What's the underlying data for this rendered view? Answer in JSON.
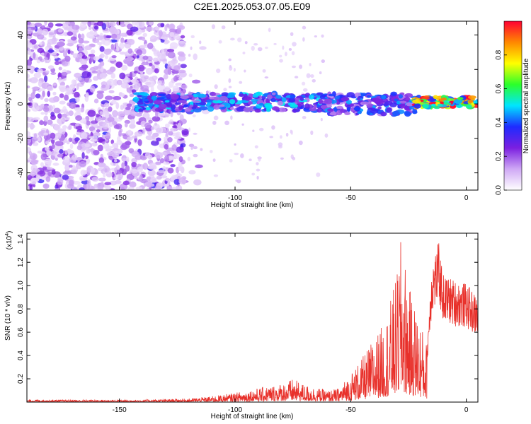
{
  "title": "C2E1.2025.053.07.05.E09",
  "chart_data": [
    {
      "type": "heatmap",
      "title": "C2E1.2025.053.07.05.E09",
      "xlabel": "Height of straight line (km)",
      "ylabel": "Frequency (Hz)",
      "xlim": [
        -190,
        5
      ],
      "ylim": [
        -50,
        48
      ],
      "xticks": [
        "-150",
        "-100",
        "-50",
        "0"
      ],
      "xtick_values": [
        -150,
        -100,
        -50,
        0
      ],
      "yticks": [
        "-40",
        "-20",
        "0",
        "20",
        "40"
      ],
      "ytick_values": [
        -40,
        -20,
        0,
        20,
        40
      ],
      "colorbar": {
        "label": "Normalized spectral amplitude",
        "range": [
          0,
          1
        ],
        "ticks": [
          "0.0",
          "0.2",
          "0.4",
          "0.6",
          "0.8"
        ],
        "tick_values": [
          0.0,
          0.2,
          0.4,
          0.6,
          0.8
        ],
        "colors": [
          "#ffffff",
          "#cfa8f5",
          "#7b1fe0",
          "#1e2bff",
          "#00e5ff",
          "#2bff2b",
          "#ffff00",
          "#ff8800",
          "#ff0033"
        ]
      },
      "features": [
        {
          "x_range": [
            -190,
            -122
          ],
          "y_range": [
            -50,
            48
          ],
          "amplitude": 0.15
        },
        {
          "x_range": [
            -143,
            -60
          ],
          "y_center": 1,
          "y_halfwidth": 5,
          "amplitude": 0.45
        },
        {
          "x_range": [
            -60,
            -22
          ],
          "y_center": 0,
          "y_halfwidth": 6,
          "amplitude": 0.4
        },
        {
          "x_range": [
            -22,
            5
          ],
          "y_center": 1,
          "y_halfwidth": 3,
          "amplitude": 0.9
        }
      ]
    },
    {
      "type": "line",
      "xlabel": "Height of straight line (km)",
      "ylabel": "SNR (10 * v/v)",
      "y_multiplier": "(x10",
      "y_multiplier_exp": "4",
      "y_multiplier_close": ")",
      "xlim": [
        -190,
        5
      ],
      "ylim": [
        0,
        1.45
      ],
      "xticks": [
        "-150",
        "-100",
        "-50",
        "0"
      ],
      "xtick_values": [
        -150,
        -100,
        -50,
        0
      ],
      "yticks": [
        "0.2",
        "0.4",
        "0.6",
        "0.8",
        "1.0",
        "1.2",
        "1.4"
      ],
      "ytick_values": [
        0.2,
        0.4,
        0.6,
        0.8,
        1.0,
        1.2,
        1.4
      ],
      "color": "#e8302a",
      "envelope": {
        "x": [
          -190,
          -140,
          -120,
          -110,
          -100,
          -90,
          -80,
          -75,
          -70,
          -60,
          -55,
          -50,
          -45,
          -40,
          -35,
          -30,
          -28,
          -25,
          -20,
          -17,
          -15,
          -12,
          -10,
          -5,
          0,
          5
        ],
        "y": [
          0.02,
          0.02,
          0.03,
          0.05,
          0.08,
          0.12,
          0.16,
          0.2,
          0.15,
          0.1,
          0.12,
          0.25,
          0.38,
          0.55,
          0.7,
          1.1,
          1.45,
          1.0,
          0.7,
          0.5,
          1.2,
          1.38,
          1.1,
          1.05,
          1.02,
          0.9
        ]
      }
    }
  ]
}
